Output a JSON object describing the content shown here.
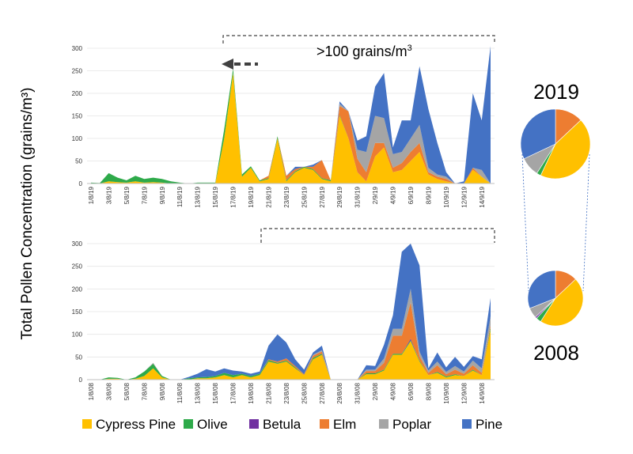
{
  "y_axis_label": "Total Pollen Concentration (grains/m³)",
  "annotation": {
    "text": ">100 grains/m",
    "superscript": "3"
  },
  "colors": {
    "Cypress Pine": "#ffc000",
    "Olive": "#2eaa4a",
    "Betula": "#7030a0",
    "Elm": "#ed7d31",
    "Poplar": "#a5a5a5",
    "Pine": "#4472c4"
  },
  "chart_data": [
    {
      "type": "area",
      "stacked": true,
      "year_label": "2019",
      "ylim": [
        0,
        300
      ],
      "yticks": [
        "0",
        "50",
        "100",
        "150",
        "200",
        "250",
        "300"
      ],
      "x": [
        "1/8/19",
        "2/8/19",
        "3/8/19",
        "4/8/19",
        "5/8/19",
        "6/8/19",
        "7/8/19",
        "8/8/19",
        "9/8/19",
        "10/8/19",
        "11/8/19",
        "12/8/19",
        "13/8/19",
        "14/8/19",
        "15/8/19",
        "16/8/19",
        "17/8/19",
        "18/8/19",
        "19/8/19",
        "20/8/19",
        "21/8/19",
        "22/8/19",
        "23/8/19",
        "24/8/19",
        "25/8/19",
        "26/8/19",
        "27/8/19",
        "28/8/19",
        "29/8/19",
        "30/8/19",
        "31/8/19",
        "1/9/19",
        "2/9/19",
        "3/9/19",
        "4/9/19",
        "5/9/19",
        "6/9/19",
        "7/9/19",
        "8/9/19",
        "9/9/19",
        "10/9/19",
        "11/9/19",
        "12/9/19",
        "13/9/19",
        "14/9/19",
        "15/9/19"
      ],
      "x_tick_labels": [
        "1/8/19",
        "3/8/19",
        "5/8/19",
        "7/8/19",
        "9/8/19",
        "11/8/19",
        "13/8/19",
        "15/8/19",
        "17/8/19",
        "19/8/19",
        "21/8/19",
        "23/8/19",
        "25/8/19",
        "27/8/19",
        "29/8/19",
        "31/8/19",
        "2/9/19",
        "4/9/19",
        "6/9/19",
        "8/9/19",
        "10/9/19",
        "12/9/19",
        "14/9/19"
      ],
      "series": [
        {
          "name": "Cypress Pine",
          "values": [
            0,
            0,
            5,
            3,
            2,
            5,
            2,
            3,
            2,
            0,
            0,
            0,
            0,
            0,
            0,
            100,
            245,
            15,
            35,
            5,
            10,
            100,
            5,
            25,
            35,
            30,
            10,
            5,
            150,
            100,
            25,
            5,
            60,
            80,
            25,
            30,
            50,
            70,
            20,
            10,
            5,
            0,
            0,
            30,
            15,
            0
          ]
        },
        {
          "name": "Olive",
          "values": [
            2,
            1,
            18,
            10,
            5,
            12,
            8,
            10,
            8,
            5,
            2,
            0,
            2,
            2,
            2,
            20,
            10,
            5,
            3,
            2,
            2,
            5,
            2,
            2,
            2,
            2,
            2,
            2,
            2,
            0,
            0,
            0,
            0,
            0,
            0,
            0,
            0,
            0,
            0,
            0,
            0,
            0,
            0,
            0,
            0,
            0
          ]
        },
        {
          "name": "Betula",
          "values": [
            0,
            0,
            0,
            0,
            0,
            0,
            0,
            0,
            0,
            0,
            0,
            0,
            0,
            0,
            0,
            0,
            0,
            0,
            0,
            0,
            0,
            0,
            0,
            0,
            0,
            0,
            0,
            0,
            0,
            0,
            0,
            0,
            0,
            0,
            0,
            0,
            0,
            0,
            0,
            0,
            0,
            0,
            0,
            0,
            0,
            0
          ]
        },
        {
          "name": "Elm",
          "values": [
            0,
            0,
            0,
            0,
            0,
            0,
            0,
            0,
            0,
            0,
            0,
            0,
            0,
            0,
            0,
            0,
            0,
            0,
            0,
            0,
            5,
            0,
            10,
            5,
            0,
            5,
            40,
            0,
            20,
            60,
            30,
            20,
            30,
            10,
            10,
            15,
            20,
            20,
            5,
            5,
            5,
            0,
            0,
            5,
            0,
            0
          ]
        },
        {
          "name": "Poplar",
          "values": [
            0,
            0,
            0,
            0,
            0,
            0,
            0,
            0,
            0,
            0,
            0,
            0,
            0,
            0,
            0,
            0,
            0,
            0,
            0,
            0,
            0,
            0,
            0,
            0,
            0,
            0,
            0,
            0,
            5,
            0,
            20,
            45,
            60,
            55,
            30,
            25,
            30,
            40,
            10,
            5,
            5,
            0,
            0,
            0,
            15,
            0
          ]
        },
        {
          "name": "Pine",
          "values": [
            0,
            0,
            0,
            0,
            0,
            0,
            0,
            0,
            0,
            0,
            0,
            0,
            0,
            0,
            0,
            0,
            0,
            0,
            0,
            0,
            0,
            0,
            0,
            5,
            0,
            5,
            0,
            0,
            5,
            0,
            20,
            35,
            65,
            100,
            15,
            70,
            40,
            130,
            130,
            70,
            10,
            0,
            5,
            165,
            110,
            305
          ]
        }
      ],
      "composition": [
        {
          "name": "Cypress Pine",
          "value": 44
        },
        {
          "name": "Olive",
          "value": 2
        },
        {
          "name": "Betula",
          "value": 0
        },
        {
          "name": "Elm",
          "value": 13
        },
        {
          "name": "Poplar",
          "value": 9
        },
        {
          "name": "Pine",
          "value": 32
        }
      ]
    },
    {
      "type": "area",
      "stacked": true,
      "year_label": "2008",
      "ylim": [
        0,
        300
      ],
      "yticks": [
        "0",
        "50",
        "100",
        "150",
        "200",
        "250",
        "300"
      ],
      "x": [
        "1/8/08",
        "2/8/08",
        "3/8/08",
        "4/8/08",
        "5/8/08",
        "6/8/08",
        "7/8/08",
        "8/8/08",
        "9/8/08",
        "10/8/08",
        "11/8/08",
        "12/8/08",
        "13/8/08",
        "14/8/08",
        "15/8/08",
        "16/8/08",
        "17/8/08",
        "18/8/08",
        "19/8/08",
        "20/8/08",
        "21/8/08",
        "22/8/08",
        "23/8/08",
        "24/8/08",
        "25/8/08",
        "26/8/08",
        "27/8/08",
        "28/8/08",
        "29/8/08",
        "30/8/08",
        "31/8/08",
        "1/9/08",
        "2/9/08",
        "3/9/08",
        "4/9/08",
        "5/9/08",
        "6/9/08",
        "7/9/08",
        "8/9/08",
        "9/9/08",
        "10/9/08",
        "11/9/08",
        "12/9/08",
        "13/9/08",
        "14/9/08",
        "15/9/08"
      ],
      "x_tick_labels": [
        "1/8/08",
        "3/8/08",
        "5/8/08",
        "7/8/08",
        "9/8/08",
        "11/8/08",
        "13/8/08",
        "15/8/08",
        "17/8/08",
        "19/8/08",
        "21/8/08",
        "23/8/08",
        "25/8/08",
        "27/8/08",
        "29/8/08",
        "31/8/08",
        "2/9/08",
        "4/9/08",
        "6/9/08",
        "8/9/08",
        "10/9/08",
        "12/9/08",
        "14/9/08"
      ],
      "series": [
        {
          "name": "Cypress Pine",
          "values": [
            0,
            0,
            2,
            2,
            0,
            2,
            8,
            25,
            5,
            0,
            0,
            0,
            3,
            3,
            5,
            10,
            5,
            10,
            5,
            10,
            40,
            35,
            40,
            25,
            10,
            45,
            55,
            0,
            0,
            0,
            0,
            12,
            12,
            20,
            55,
            55,
            85,
            40,
            10,
            15,
            5,
            10,
            8,
            20,
            10,
            110
          ]
        },
        {
          "name": "Olive",
          "values": [
            0,
            0,
            3,
            2,
            0,
            3,
            10,
            10,
            3,
            0,
            0,
            3,
            2,
            3,
            3,
            5,
            5,
            3,
            3,
            3,
            3,
            2,
            2,
            2,
            0,
            3,
            2,
            0,
            0,
            0,
            0,
            2,
            2,
            2,
            2,
            2,
            2,
            2,
            0,
            2,
            2,
            2,
            0,
            2,
            0,
            5
          ]
        },
        {
          "name": "Betula",
          "values": [
            0,
            0,
            0,
            0,
            0,
            0,
            0,
            0,
            0,
            0,
            0,
            0,
            0,
            0,
            0,
            0,
            0,
            0,
            0,
            0,
            0,
            0,
            0,
            0,
            0,
            0,
            0,
            0,
            0,
            0,
            0,
            0,
            0,
            0,
            0,
            0,
            3,
            0,
            0,
            0,
            0,
            0,
            0,
            0,
            0,
            0
          ]
        },
        {
          "name": "Elm",
          "values": [
            0,
            0,
            0,
            0,
            0,
            0,
            0,
            0,
            0,
            0,
            0,
            0,
            0,
            0,
            0,
            0,
            0,
            0,
            0,
            0,
            2,
            3,
            5,
            3,
            2,
            5,
            5,
            0,
            0,
            0,
            0,
            5,
            5,
            15,
            40,
            40,
            80,
            10,
            5,
            15,
            5,
            10,
            5,
            10,
            5,
            5
          ]
        },
        {
          "name": "Poplar",
          "values": [
            0,
            0,
            0,
            0,
            0,
            0,
            0,
            2,
            0,
            0,
            0,
            0,
            0,
            0,
            0,
            0,
            0,
            0,
            0,
            0,
            0,
            0,
            0,
            0,
            0,
            2,
            3,
            0,
            0,
            0,
            0,
            3,
            3,
            10,
            15,
            15,
            30,
            10,
            5,
            8,
            5,
            8,
            5,
            10,
            10,
            20
          ]
        },
        {
          "name": "Pine",
          "values": [
            0,
            0,
            0,
            0,
            0,
            0,
            0,
            0,
            0,
            0,
            0,
            3,
            8,
            17,
            10,
            10,
            10,
            5,
            5,
            5,
            30,
            60,
            35,
            15,
            10,
            5,
            10,
            0,
            0,
            0,
            0,
            10,
            8,
            30,
            30,
            170,
            100,
            190,
            5,
            20,
            10,
            20,
            10,
            10,
            20,
            40
          ]
        }
      ],
      "composition": [
        {
          "name": "Cypress Pine",
          "value": 46
        },
        {
          "name": "Olive",
          "value": 3
        },
        {
          "name": "Betula",
          "value": 1
        },
        {
          "name": "Elm",
          "value": 13
        },
        {
          "name": "Poplar",
          "value": 6
        },
        {
          "name": "Pine",
          "value": 31
        }
      ]
    }
  ],
  "legend": [
    "Cypress Pine",
    "Olive",
    "Betula",
    "Elm",
    "Poplar",
    "Pine"
  ]
}
